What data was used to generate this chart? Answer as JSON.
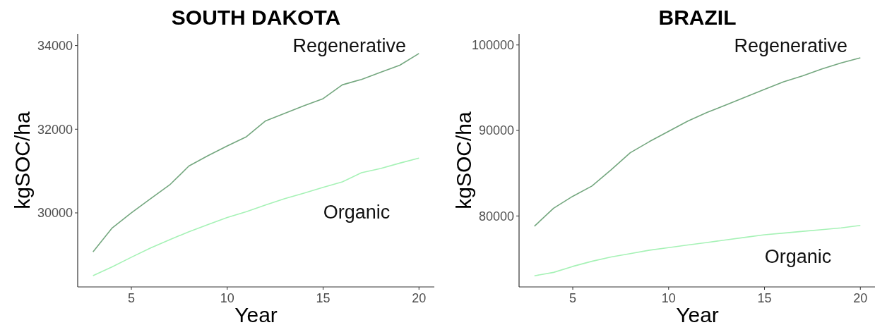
{
  "chart_data": [
    {
      "type": "line",
      "title": "SOUTH DAKOTA",
      "xlabel": "Year",
      "ylabel": "kgSOC/ha",
      "xlim": [
        2.2,
        20.8
      ],
      "xticks": [
        5,
        10,
        15,
        20
      ],
      "ylim": [
        28230,
        34280
      ],
      "yticks": [
        30000,
        32000,
        34000
      ],
      "x": [
        3,
        4,
        5,
        6,
        7,
        8,
        9,
        10,
        11,
        12,
        13,
        14,
        15,
        16,
        17,
        18,
        19,
        20
      ],
      "series": [
        {
          "name": "Regenerative",
          "color": "#74a77f",
          "values": [
            29070,
            29640,
            30000,
            30340,
            30670,
            31120,
            31370,
            31600,
            31820,
            32200,
            32380,
            32560,
            32730,
            33060,
            33190,
            33360,
            33530,
            33810
          ]
        },
        {
          "name": "Organic",
          "color": "#a6f2b6",
          "values": [
            28500,
            28710,
            28940,
            29160,
            29360,
            29550,
            29720,
            29890,
            30030,
            30190,
            30340,
            30470,
            30610,
            30740,
            30960,
            31060,
            31190,
            31310
          ]
        }
      ]
    },
    {
      "type": "line",
      "title": "BRAZIL",
      "xlabel": "Year",
      "ylabel": "kgSOC/ha",
      "xlim": [
        2.2,
        20.8
      ],
      "xticks": [
        5,
        10,
        15,
        20
      ],
      "ylim": [
        71700,
        101300
      ],
      "yticks": [
        80000,
        90000,
        100000
      ],
      "x": [
        3,
        4,
        5,
        6,
        7,
        8,
        9,
        10,
        11,
        12,
        13,
        14,
        15,
        16,
        17,
        18,
        19,
        20
      ],
      "series": [
        {
          "name": "Regenerative",
          "color": "#74a77f",
          "values": [
            78800,
            80900,
            82300,
            83500,
            85400,
            87400,
            88700,
            89900,
            91100,
            92100,
            93000,
            93900,
            94800,
            95700,
            96400,
            97200,
            97900,
            98500
          ]
        },
        {
          "name": "Organic",
          "color": "#a6f2b6",
          "values": [
            73000,
            73400,
            74100,
            74700,
            75200,
            75600,
            76000,
            76300,
            76600,
            76900,
            77200,
            77500,
            77800,
            78000,
            78200,
            78400,
            78600,
            78900
          ]
        }
      ]
    }
  ]
}
